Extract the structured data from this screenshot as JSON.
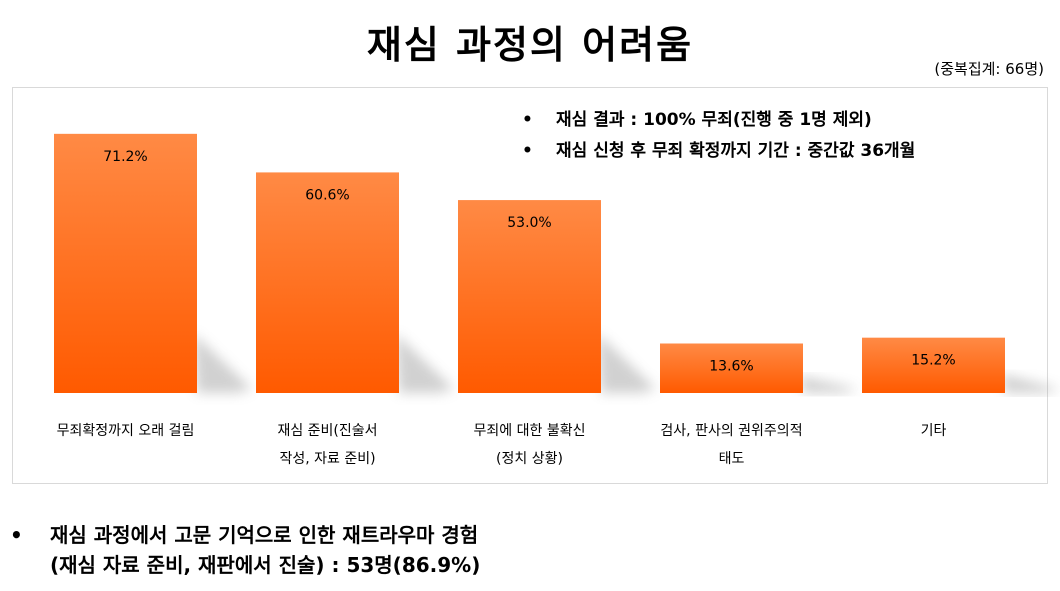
{
  "title": "재심 과정의 어려움",
  "note": "(중복집계: 66명)",
  "bullets": [
    "재심 결과 :  100% 무죄(진행 중 1명 제외)",
    "재심 신청 후 무죄 확정까지 기간 : 중간값 36개월"
  ],
  "chart_data": {
    "type": "bar",
    "title": "재심 과정의 어려움",
    "categories": [
      [
        "무죄확정까지 오래 걸림"
      ],
      [
        "재심 준비(진술서",
        "작성, 자료 준비)"
      ],
      [
        "무죄에 대한 불확신",
        "(정치 상황)"
      ],
      [
        "검사, 판사의 권위주의적",
        "태도"
      ],
      [
        "기타"
      ]
    ],
    "values": [
      71.2,
      60.6,
      53.0,
      13.6,
      15.2
    ],
    "value_labels": [
      "71.2%",
      "60.6%",
      "53.0%",
      "13.6%",
      "15.2%"
    ],
    "ylim": [
      0,
      100
    ],
    "bar_color": "#ff6a1a",
    "grid": false,
    "xlabel": "",
    "ylabel": ""
  },
  "footer": {
    "bullet": "•",
    "line1": "재심 과정에서 고문 기억으로 인한 재트라우마 경험",
    "line2": "(재심 자료 준비, 재판에서 진술) : 53명(86.9%)"
  }
}
